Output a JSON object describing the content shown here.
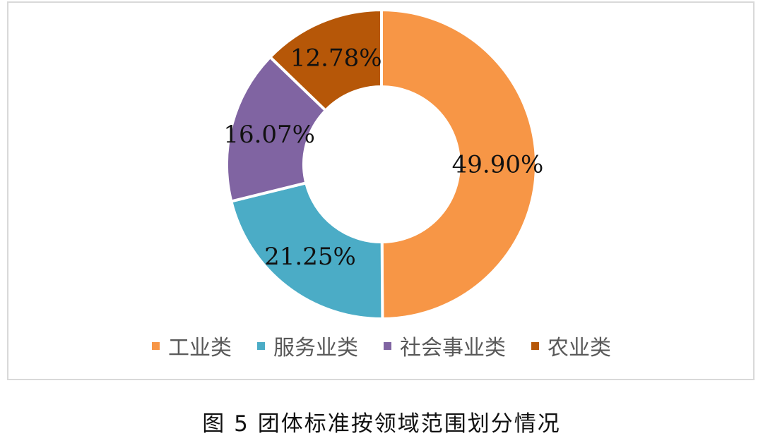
{
  "chart_data": {
    "type": "pie",
    "variant": "donut",
    "categories": [
      "工业类",
      "服务业类",
      "社会事业类",
      "农业类"
    ],
    "values": [
      49.9,
      21.25,
      16.07,
      12.78
    ],
    "data_labels": [
      "49.90%",
      "21.25%",
      "16.07%",
      "12.78%"
    ],
    "colors": [
      "#F79646",
      "#4BACC6",
      "#8064A2",
      "#B65708"
    ],
    "legend_placement": "bottom",
    "start_angle": "top, clockwise"
  },
  "caption": "图 5   团体标准按领域范围划分情况"
}
